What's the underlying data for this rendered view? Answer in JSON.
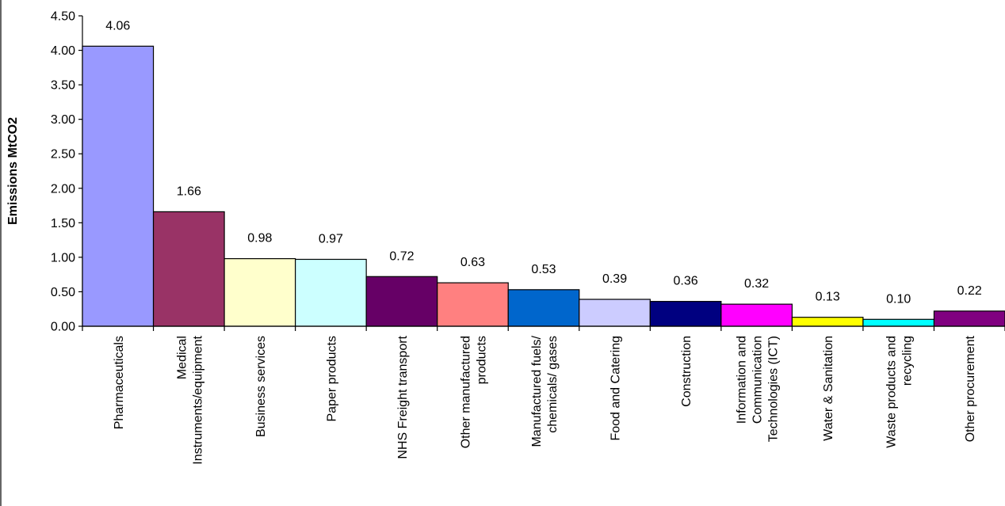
{
  "chart_data": {
    "type": "bar",
    "title": "",
    "xlabel": "",
    "ylabel": "Emissions MtCO2",
    "ylim": [
      0,
      4.5
    ],
    "yticks": [
      "0.00",
      "0.50",
      "1.00",
      "1.50",
      "2.00",
      "2.50",
      "3.00",
      "3.50",
      "4.00",
      "4.50"
    ],
    "ytick_values": [
      0,
      0.5,
      1,
      1.5,
      2,
      2.5,
      3,
      3.5,
      4,
      4.5
    ],
    "grid": false,
    "legend": "none",
    "categories": [
      "Pharmaceuticals",
      "Medical Instruments/equipment",
      "Business services",
      "Paper products",
      "NHS Freight transport",
      "Other manufactured products",
      "Manufactured fuels/ chemicals/ gases",
      "Food and Catering",
      "Construction",
      "Information and Communication Technologies (ICT)",
      "Water & Sanitation",
      "Waste products and recycling",
      "Other procurement"
    ],
    "category_lines": [
      [
        "Pharmaceuticals"
      ],
      [
        "Medical",
        "Instruments/equipment"
      ],
      [
        "Business services"
      ],
      [
        "Paper products"
      ],
      [
        "NHS Freight transport"
      ],
      [
        "Other manufactured",
        "products"
      ],
      [
        "Manufactured fuels/",
        "chemicals/ gases"
      ],
      [
        "Food and Catering"
      ],
      [
        "Construction"
      ],
      [
        "Information and",
        "Communication",
        "Technologies (ICT)"
      ],
      [
        "Water & Sanitation"
      ],
      [
        "Waste products and",
        "recycling"
      ],
      [
        "Other procurement"
      ]
    ],
    "values": [
      4.06,
      1.66,
      0.98,
      0.97,
      0.72,
      0.63,
      0.53,
      0.39,
      0.36,
      0.32,
      0.13,
      0.1,
      0.22
    ],
    "value_labels": [
      "4.06",
      "1.66",
      "0.98",
      "0.97",
      "0.72",
      "0.63",
      "0.53",
      "0.39",
      "0.36",
      "0.32",
      "0.13",
      "0.10",
      "0.22"
    ],
    "colors": [
      "#9999ff",
      "#993366",
      "#ffffcc",
      "#ccffff",
      "#660066",
      "#ff8080",
      "#0066cc",
      "#ccccff",
      "#000080",
      "#ff00ff",
      "#ffff00",
      "#00ffff",
      "#800080"
    ]
  }
}
